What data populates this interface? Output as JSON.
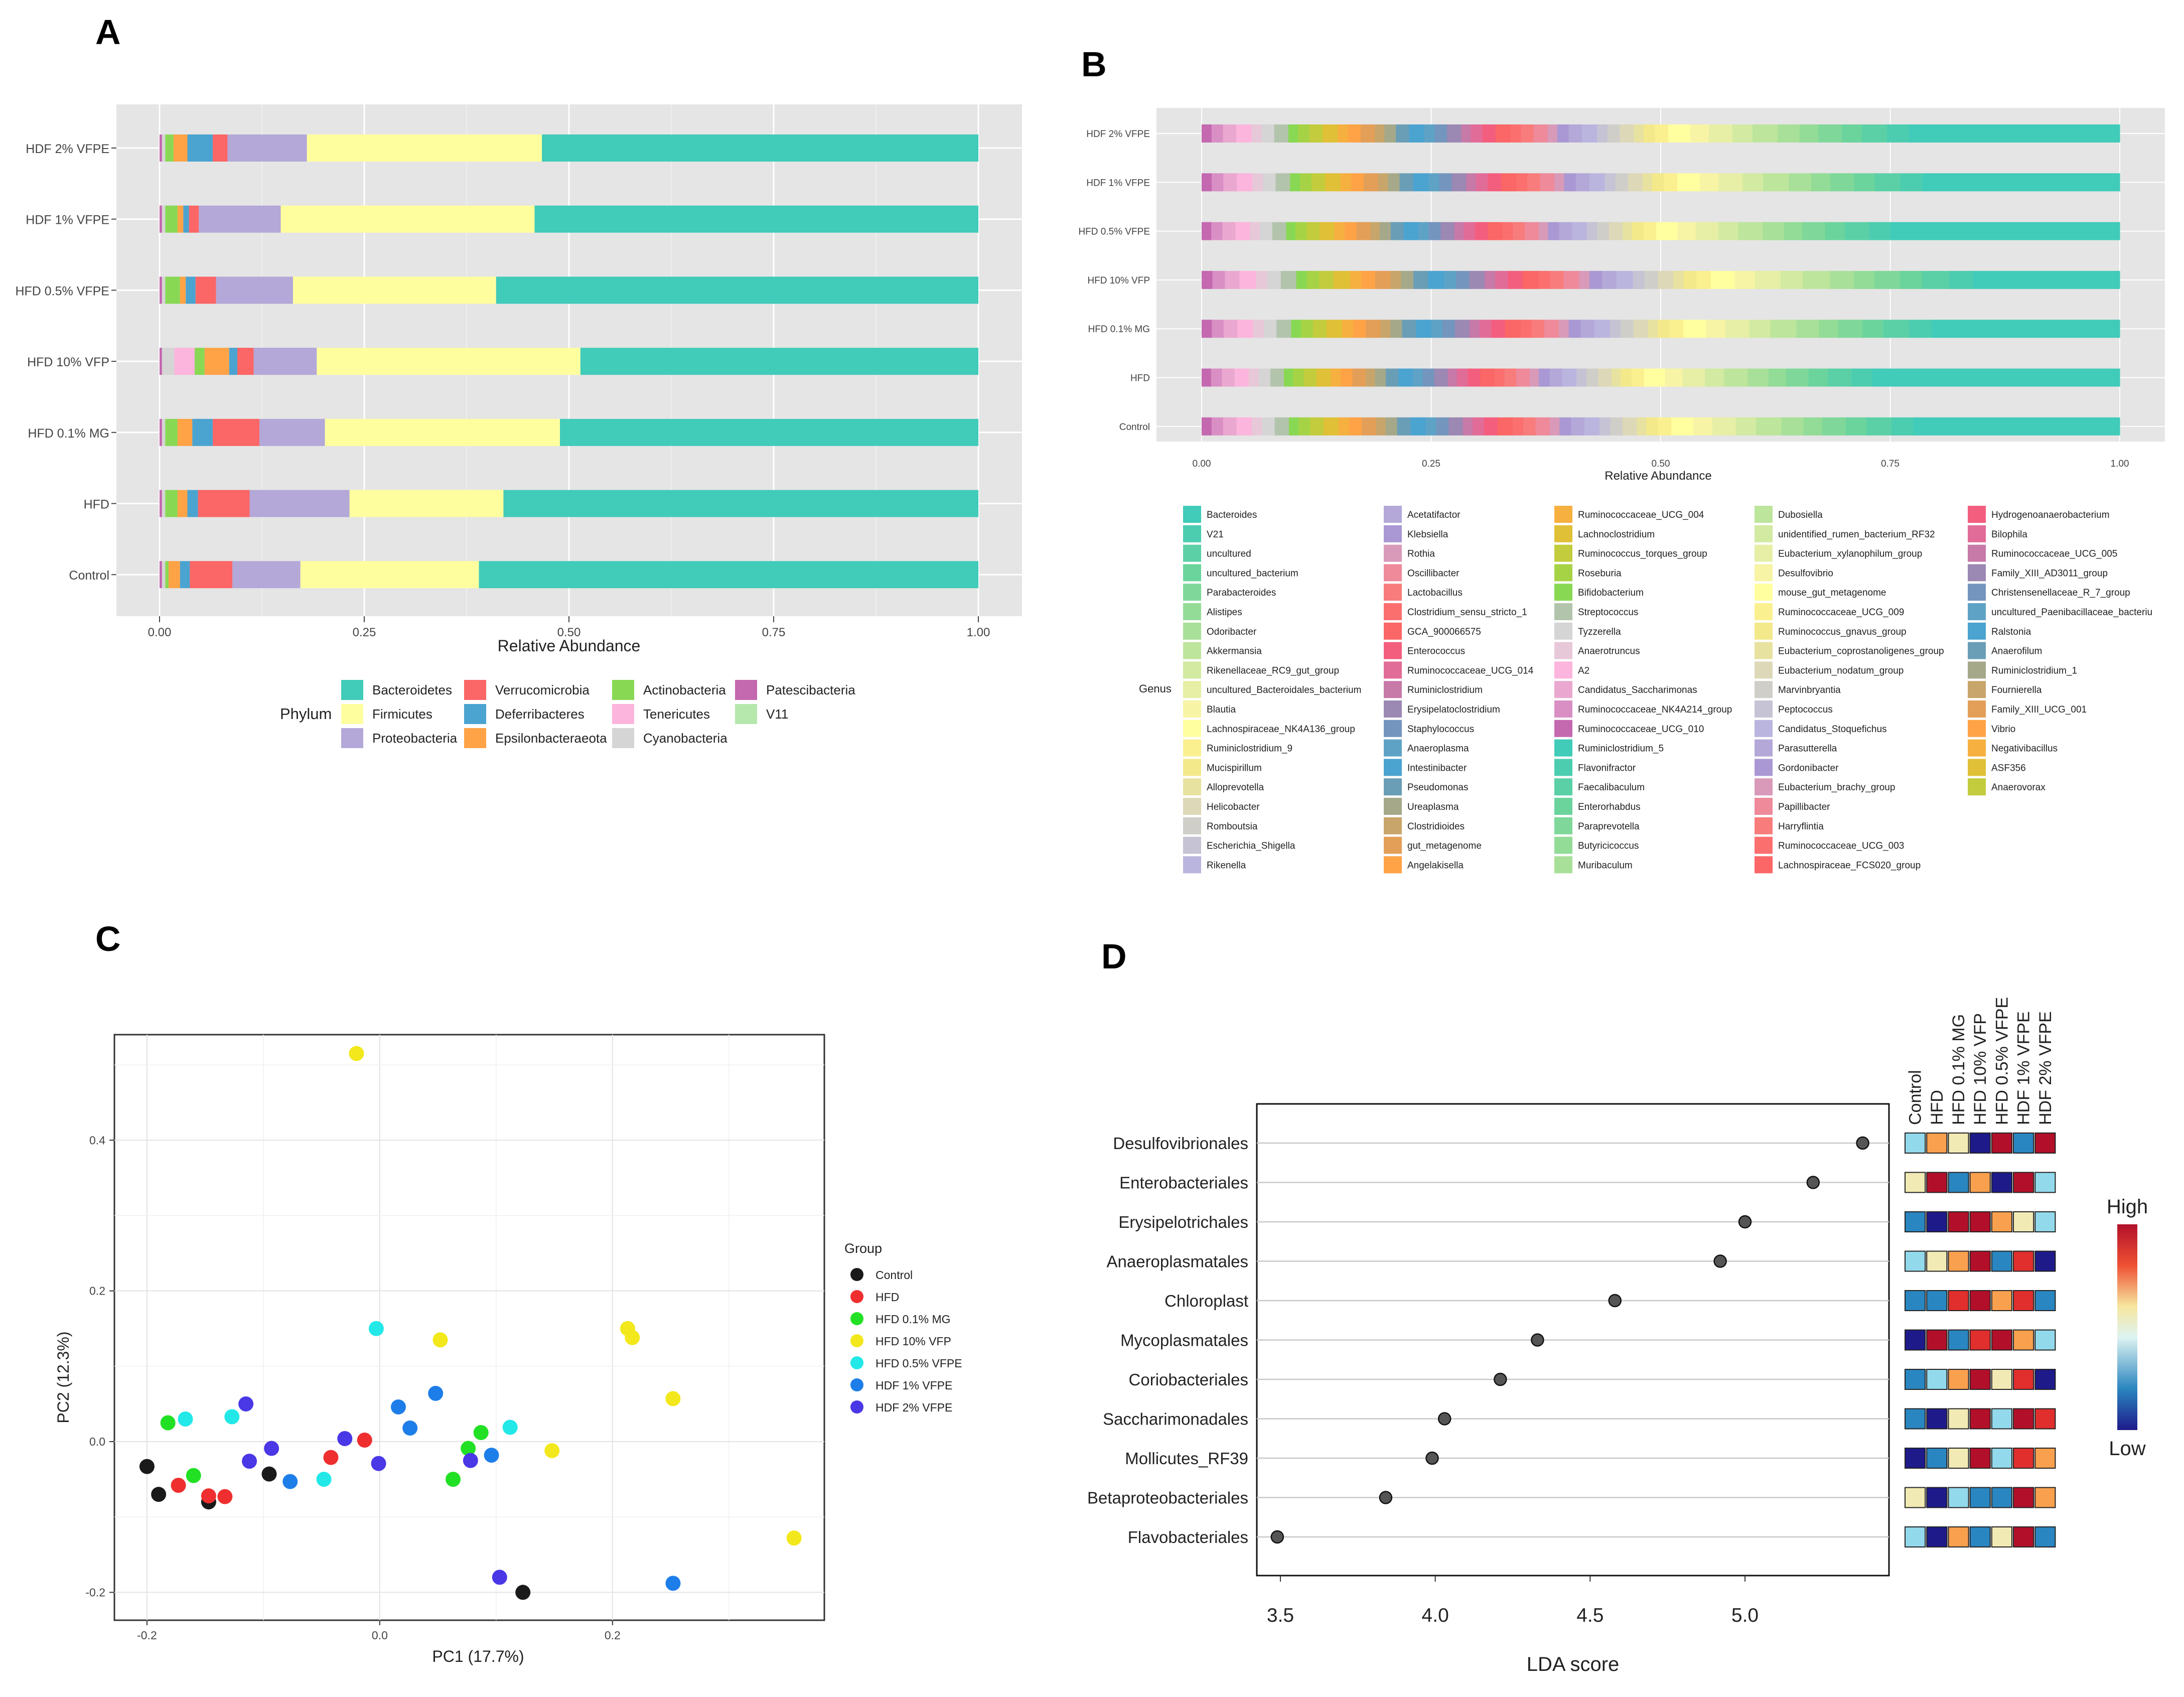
{
  "panels": {
    "a": "A",
    "b": "B",
    "c": "C",
    "d": "D"
  },
  "chart_data": [
    {
      "id": "A",
      "type": "bar",
      "orientation": "horizontal",
      "stacked": true,
      "categories": [
        "HDF 2% VFPE",
        "HDF 1% VFPE",
        "HFD 0.5% VFPE",
        "HFD 10% VFP",
        "HFD 0.1% MG",
        "HFD",
        "Control"
      ],
      "xlabel": "Relative Abundance",
      "xlim": [
        0,
        1
      ],
      "xticks": [
        "0.00",
        "0.25",
        "0.50",
        "0.75",
        "1.00"
      ],
      "legend_title": "Phylum",
      "series": [
        {
          "name": "Patescibacteria",
          "color": "#c468b0",
          "values": [
            0.003,
            0.003,
            0.003,
            0.003,
            0.003,
            0.003,
            0.003
          ]
        },
        {
          "name": "Cyanobacteria",
          "color": "#d5d5d5",
          "values": [
            0.004,
            0.004,
            0.004,
            0.015,
            0.004,
            0.004,
            0.004
          ]
        },
        {
          "name": "Tenericutes",
          "color": "#fcb5dc",
          "values": [
            0.0,
            0.0,
            0.0,
            0.025,
            0.0,
            0.0,
            0.0
          ]
        },
        {
          "name": "Actinobacteria",
          "color": "#88d854",
          "values": [
            0.01,
            0.015,
            0.018,
            0.012,
            0.015,
            0.015,
            0.004
          ]
        },
        {
          "name": "Epsilonbacteraeota",
          "color": "#ffa346",
          "values": [
            0.017,
            0.007,
            0.007,
            0.03,
            0.018,
            0.012,
            0.014
          ]
        },
        {
          "name": "Deferribacteres",
          "color": "#4ba3d0",
          "values": [
            0.031,
            0.007,
            0.012,
            0.01,
            0.025,
            0.013,
            0.012
          ]
        },
        {
          "name": "Verrucomicrobia",
          "color": "#fb6666",
          "values": [
            0.018,
            0.012,
            0.025,
            0.02,
            0.057,
            0.063,
            0.052
          ]
        },
        {
          "name": "Proteobacteria",
          "color": "#b3a8d8",
          "values": [
            0.097,
            0.1,
            0.094,
            0.077,
            0.08,
            0.122,
            0.083
          ]
        },
        {
          "name": "Firmicutes",
          "color": "#fffe9f",
          "values": [
            0.287,
            0.31,
            0.248,
            0.322,
            0.287,
            0.188,
            0.218
          ]
        },
        {
          "name": "V11",
          "color": "#b6e8ad",
          "values": [
            0.0,
            0.0,
            0.0,
            0.0,
            0.0,
            0.0,
            0.0
          ]
        },
        {
          "name": "Bacteroidetes",
          "color": "#41cbb9",
          "values": [
            0.533,
            0.542,
            0.589,
            0.486,
            0.511,
            0.58,
            0.61
          ]
        }
      ]
    },
    {
      "id": "B",
      "type": "bar",
      "orientation": "horizontal",
      "stacked": true,
      "categories": [
        "HDF 2% VFPE",
        "HDF 1% VFPE",
        "HFD 0.5% VFPE",
        "HFD 10% VFP",
        "HFD 0.1% MG",
        "HFD",
        "Control"
      ],
      "xlabel": "Relative Abundance",
      "xlim": [
        0,
        1
      ],
      "xticks": [
        "0.00",
        "0.25",
        "0.50",
        "0.75",
        "1.00"
      ],
      "legend_title": "Genus",
      "legend_columns": [
        [
          "Bacteroides",
          "V21",
          "uncultured",
          "uncultured_bacterium",
          "Parabacteroides",
          "Alistipes",
          "Odoribacter",
          "Akkermansia",
          "Rikenellaceae_RC9_gut_group",
          "uncultured_Bacteroidales_bacterium",
          "Blautia",
          "Lachnospiraceae_NK4A136_group",
          "Ruminiclostridium_9",
          "Mucispirillum",
          "Alloprevotella",
          "Helicobacter",
          "Romboutsia",
          "Escherichia_Shigella",
          "Rikenella"
        ],
        [
          "Acetatifactor",
          "Klebsiella",
          "Rothia",
          "Oscillibacter",
          "Lactobacillus",
          "Clostridium_sensu_stricto_1",
          "GCA_900066575",
          "Enterococcus",
          "Ruminococcaceae_UCG_014",
          "Ruminiclostridium",
          "Erysipelatoclostridium",
          "Staphylococcus",
          "Anaeroplasma",
          "Intestinibacter",
          "Pseudomonas",
          "Ureaplasma",
          "Clostridioides",
          "gut_metagenome",
          "Angelakisella"
        ],
        [
          "Ruminococcaceae_UCG_004",
          "Lachnoclostridium",
          "Ruminococcus_torques_group",
          "Roseburia",
          "Bifidobacterium",
          "Streptococcus",
          "Tyzzerella",
          "Anaerotruncus",
          "A2",
          "Candidatus_Saccharimonas",
          "Ruminococcaceae_NK4A214_group",
          "Ruminococcaceae_UCG_010",
          "Ruminiclostridium_5",
          "Flavonifractor",
          "Faecalibaculum",
          "Enterorhabdus",
          "Paraprevotella",
          "Butyricicoccus",
          "Muribaculum"
        ],
        [
          "Dubosiella",
          "unidentified_rumen_bacterium_RF32",
          "Eubacterium_xylanophilum_group",
          "Desulfovibrio",
          "mouse_gut_metagenome",
          "Ruminococcaceae_UCG_009",
          "Ruminococcus_gnavus_group",
          "Eubacterium_coprostanoligenes_group",
          "Eubacterium_nodatum_group",
          "Marvinbryantia",
          "Peptococcus",
          "Candidatus_Stoquefichus",
          "Parasutterella",
          "Gordonibacter",
          "Eubacterium_brachy_group",
          "Papillibacter",
          "Harryflintia",
          "Ruminococcaceae_UCG_003",
          "Lachnospiraceae_FCS020_group"
        ],
        [
          "Hydrogenoanaerobacterium",
          "Bilophila",
          "Ruminococcaceae_UCG_005",
          "Family_XIII_AD3011_group",
          "Christensenellaceae_R_7_group",
          "uncultured_Paenibacillaceae_bacteriu",
          "Ralstonia",
          "Anaerofilum",
          "Ruminiclostridium_1",
          "Fournierella",
          "Family_XIII_UCG_001",
          "Vibrio",
          "Negativibacillus",
          "ASF356",
          "Anaerovorax"
        ]
      ],
      "bacteroides_share": [
        0.23,
        0.215,
        0.25,
        0.16,
        0.205,
        0.27,
        0.225
      ]
    },
    {
      "id": "C",
      "type": "scatter",
      "xlabel": "PC1 (17.7%)",
      "ylabel": "PC2 (12.3%)",
      "xlim": [
        -0.228,
        0.382
      ],
      "ylim": [
        -0.237,
        0.54
      ],
      "xticks": [
        "-0.2",
        "0.0",
        "0.2"
      ],
      "yticks": [
        "-0.2",
        "0.0",
        "0.2",
        "0.4"
      ],
      "legend_title": "Group",
      "series": [
        {
          "name": "Control",
          "color": "#1a1a1a",
          "points": [
            [
              -0.2,
              -0.033
            ],
            [
              -0.19,
              -0.07
            ],
            [
              -0.147,
              -0.08
            ],
            [
              -0.095,
              -0.043
            ],
            [
              0.123,
              -0.2
            ]
          ]
        },
        {
          "name": "HFD",
          "color": "#ef2f2f",
          "points": [
            [
              -0.173,
              -0.058
            ],
            [
              -0.147,
              -0.072
            ],
            [
              -0.133,
              -0.073
            ],
            [
              -0.042,
              -0.021
            ],
            [
              -0.013,
              0.002
            ]
          ]
        },
        {
          "name": "HFD 0.1% MG",
          "color": "#22e024",
          "points": [
            [
              -0.182,
              0.025
            ],
            [
              -0.16,
              -0.045
            ],
            [
              0.063,
              -0.05
            ],
            [
              0.076,
              -0.009
            ],
            [
              0.087,
              0.012
            ]
          ]
        },
        {
          "name": "HFD 10% VFP",
          "color": "#f2e81b",
          "points": [
            [
              -0.02,
              0.515
            ],
            [
              0.052,
              0.135
            ],
            [
              0.213,
              0.15
            ],
            [
              0.217,
              0.138
            ],
            [
              0.252,
              0.057
            ],
            [
              0.148,
              -0.012
            ],
            [
              0.356,
              -0.128
            ]
          ]
        },
        {
          "name": "HFD 0.5% VFPE",
          "color": "#22e8e8",
          "points": [
            [
              -0.167,
              0.03
            ],
            [
              -0.127,
              0.033
            ],
            [
              -0.003,
              0.15
            ],
            [
              -0.048,
              -0.05
            ],
            [
              0.112,
              0.019
            ]
          ]
        },
        {
          "name": "HDF 1% VFPE",
          "color": "#1e7ee9",
          "points": [
            [
              0.016,
              0.046
            ],
            [
              0.026,
              0.018
            ],
            [
              0.048,
              0.064
            ],
            [
              -0.077,
              -0.053
            ],
            [
              0.096,
              -0.018
            ],
            [
              0.252,
              -0.188
            ]
          ]
        },
        {
          "name": "HDF 2% VFPE",
          "color": "#4a37e6",
          "points": [
            [
              -0.115,
              0.05
            ],
            [
              -0.093,
              -0.009
            ],
            [
              -0.112,
              -0.026
            ],
            [
              -0.03,
              0.004
            ],
            [
              -0.001,
              -0.029
            ],
            [
              0.078,
              -0.025
            ],
            [
              0.103,
              -0.18
            ]
          ]
        }
      ]
    },
    {
      "id": "D",
      "type": "scatter",
      "subtype": "lollipop-with-heatmap",
      "xlabel": "LDA score",
      "xlim": [
        3.4,
        5.45
      ],
      "xticks": [
        "3.5",
        "4.0",
        "4.5",
        "5.0"
      ],
      "taxa": [
        "Desulfovibrionales",
        "Enterobacteriales",
        "Erysipelotrichales",
        "Anaeroplasmatales",
        "Chloroplast",
        "Mycoplasmatales",
        "Coriobacteriales",
        "Saccharimonadales",
        "Mollicutes_RF39",
        "Betaproteobacteriales",
        "Flavobacteriales"
      ],
      "lda": [
        5.38,
        5.22,
        5.0,
        4.92,
        4.58,
        4.33,
        4.21,
        4.03,
        3.99,
        3.84,
        3.49
      ],
      "heatmap_columns": [
        "Control",
        "HFD",
        "HFD 0.1% MG",
        "HFD 10% VFP",
        "HFD 0.5% VFPE",
        "HDF 1% VFPE",
        "HDF 2% VFPE"
      ],
      "heatmap_levels": [
        [
          2,
          4,
          3,
          0,
          6,
          1,
          6
        ],
        [
          3,
          6,
          1,
          4,
          0,
          6,
          2
        ],
        [
          1,
          0,
          6,
          6,
          4,
          3,
          2
        ],
        [
          2,
          3,
          4,
          6,
          1,
          5,
          0
        ],
        [
          1,
          1,
          5,
          6,
          4,
          5,
          1
        ],
        [
          0,
          6,
          1,
          5,
          6,
          4,
          2
        ],
        [
          1,
          2,
          4,
          6,
          3,
          5,
          0
        ],
        [
          1,
          0,
          3,
          6,
          2,
          6,
          5
        ],
        [
          0,
          1,
          3,
          6,
          2,
          5,
          4
        ],
        [
          3,
          0,
          2,
          1,
          1,
          6,
          4
        ],
        [
          2,
          0,
          4,
          1,
          3,
          6,
          1
        ]
      ],
      "scale_high": "High",
      "scale_low": "Low",
      "scale_colors": [
        "#1e1a8a",
        "#2a86c0",
        "#93d9ec",
        "#f1eab4",
        "#f9a04f",
        "#e02f2d",
        "#b2102a"
      ]
    }
  ]
}
